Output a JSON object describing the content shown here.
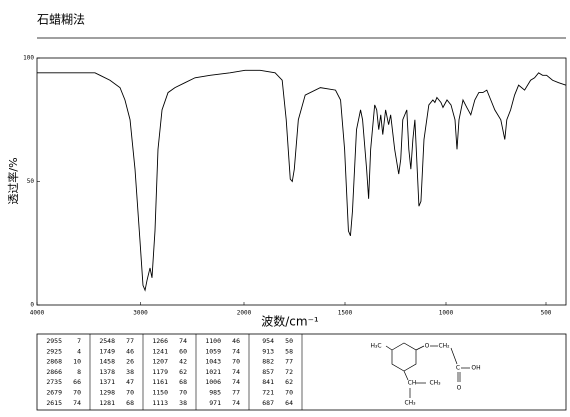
{
  "chart_data": {
    "type": "line",
    "title": "石蜡糊法",
    "x_label": "波数/cm⁻¹",
    "y_label": "透过率/%",
    "color": "#000000",
    "xlim": [
      4000,
      400
    ],
    "ylim": [
      0,
      100
    ],
    "xticks": [
      4000,
      3000,
      2000,
      1500,
      1000,
      500
    ],
    "yticks": [
      0,
      50,
      100
    ],
    "x": [
      4000,
      3440,
      3391,
      3295,
      3198,
      3150,
      3101,
      3053,
      3005,
      2976,
      2956,
      2937,
      2908,
      2889,
      2860,
      2831,
      2792,
      2734,
      2667,
      2570,
      2473,
      2328,
      2135,
      1995,
      1920,
      1846,
      1811,
      1791,
      1771,
      1761,
      1751,
      1731,
      1697,
      1622,
      1547,
      1522,
      1502,
      1483,
      1473,
      1463,
      1443,
      1423,
      1413,
      1393,
      1383,
      1373,
      1353,
      1343,
      1333,
      1323,
      1313,
      1299,
      1284,
      1274,
      1254,
      1234,
      1224,
      1214,
      1194,
      1184,
      1174,
      1164,
      1154,
      1134,
      1124,
      1109,
      1085,
      1065,
      1055,
      1045,
      1025,
      1015,
      995,
      975,
      955,
      945,
      935,
      915,
      896,
      876,
      856,
      836,
      816,
      796,
      776,
      756,
      726,
      706,
      696,
      677,
      657,
      637,
      607,
      577,
      557,
      537,
      517,
      497,
      467,
      437,
      400
    ],
    "values": [
      94,
      94,
      93,
      91,
      88,
      83,
      75,
      55,
      26,
      8,
      6,
      10,
      15,
      11,
      30,
      63,
      79,
      86,
      88,
      90,
      92,
      93,
      94,
      95,
      95,
      94,
      91,
      75,
      51,
      50,
      55,
      75,
      85,
      88,
      87,
      83,
      63,
      30,
      28,
      38,
      71,
      79,
      75,
      55,
      43,
      63,
      81,
      79,
      71,
      77,
      69,
      79,
      73,
      77,
      63,
      53,
      59,
      75,
      79,
      63,
      55,
      67,
      75,
      40,
      42,
      67,
      81,
      83,
      82,
      84,
      82,
      80,
      83,
      81,
      75,
      63,
      75,
      83,
      80,
      77,
      83,
      86,
      86,
      87,
      83,
      79,
      75,
      67,
      75,
      79,
      85,
      89,
      87,
      91,
      92,
      94,
      93,
      93,
      91,
      90,
      89
    ]
  },
  "peak_table": {
    "columns": [
      [
        [
          2955,
          7
        ],
        [
          2925,
          4
        ],
        [
          2868,
          10
        ],
        [
          2866,
          8
        ],
        [
          2735,
          66
        ],
        [
          2679,
          70
        ],
        [
          2615,
          74
        ]
      ],
      [
        [
          2548,
          77
        ],
        [
          1749,
          46
        ],
        [
          1458,
          26
        ],
        [
          1378,
          38
        ],
        [
          1371,
          47
        ],
        [
          1298,
          70
        ],
        [
          1281,
          68
        ]
      ],
      [
        [
          1266,
          74
        ],
        [
          1241,
          60
        ],
        [
          1207,
          42
        ],
        [
          1179,
          62
        ],
        [
          1161,
          68
        ],
        [
          1150,
          70
        ],
        [
          1113,
          38
        ]
      ],
      [
        [
          1100,
          46
        ],
        [
          1059,
          74
        ],
        [
          1043,
          70
        ],
        [
          1021,
          74
        ],
        [
          1006,
          74
        ],
        [
          985,
          77
        ],
        [
          971,
          74
        ]
      ],
      [
        [
          954,
          50
        ],
        [
          913,
          58
        ],
        [
          882,
          77
        ],
        [
          857,
          72
        ],
        [
          841,
          62
        ],
        [
          721,
          70
        ],
        [
          687,
          64
        ]
      ]
    ]
  },
  "structure": {
    "labels": [
      "H₃C",
      "O",
      "CH₂",
      "C",
      "OH",
      "O",
      "CH",
      "CH₃",
      "CH₃"
    ]
  }
}
